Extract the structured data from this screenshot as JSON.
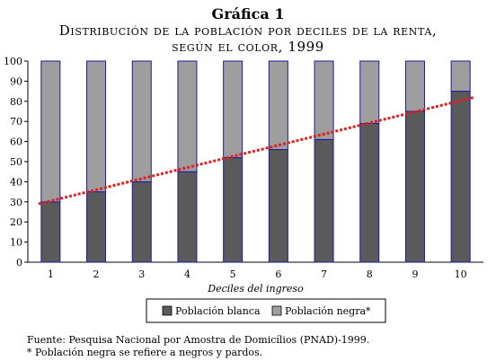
{
  "header": {
    "label": "Gráfica 1",
    "title_line1": "Distribución de la población por deciles de la renta,",
    "title_line2": "según el color, 1999"
  },
  "chart_data": {
    "type": "bar",
    "stacked": true,
    "categories": [
      "1",
      "2",
      "3",
      "4",
      "5",
      "6",
      "7",
      "8",
      "9",
      "10"
    ],
    "series": [
      {
        "name": "Población blanca",
        "color": "#5a5a5a",
        "values": [
          30,
          35,
          40,
          45,
          52,
          56,
          61,
          69,
          75,
          85
        ]
      },
      {
        "name": "Población negra*",
        "color": "#9e9e9e",
        "values": [
          70,
          65,
          60,
          55,
          48,
          44,
          39,
          31,
          25,
          15
        ]
      }
    ],
    "trendline": {
      "color": "#e02020",
      "style": "dotted",
      "start": 29,
      "end": 82
    },
    "xlabel": "Deciles del ingreso",
    "ylabel": "",
    "ylim": [
      0,
      100
    ],
    "yticks": [
      0,
      10,
      20,
      30,
      40,
      50,
      60,
      70,
      80,
      90,
      100
    ],
    "bar_outline_color": "#1a1aa0",
    "legend_position": "bottom"
  },
  "footer": {
    "source": "Fuente: Pesquisa Nacional por Amostra de Domicílios (PNAD)-1999.",
    "note": "* Población negra se refiere a negros y pardos."
  }
}
